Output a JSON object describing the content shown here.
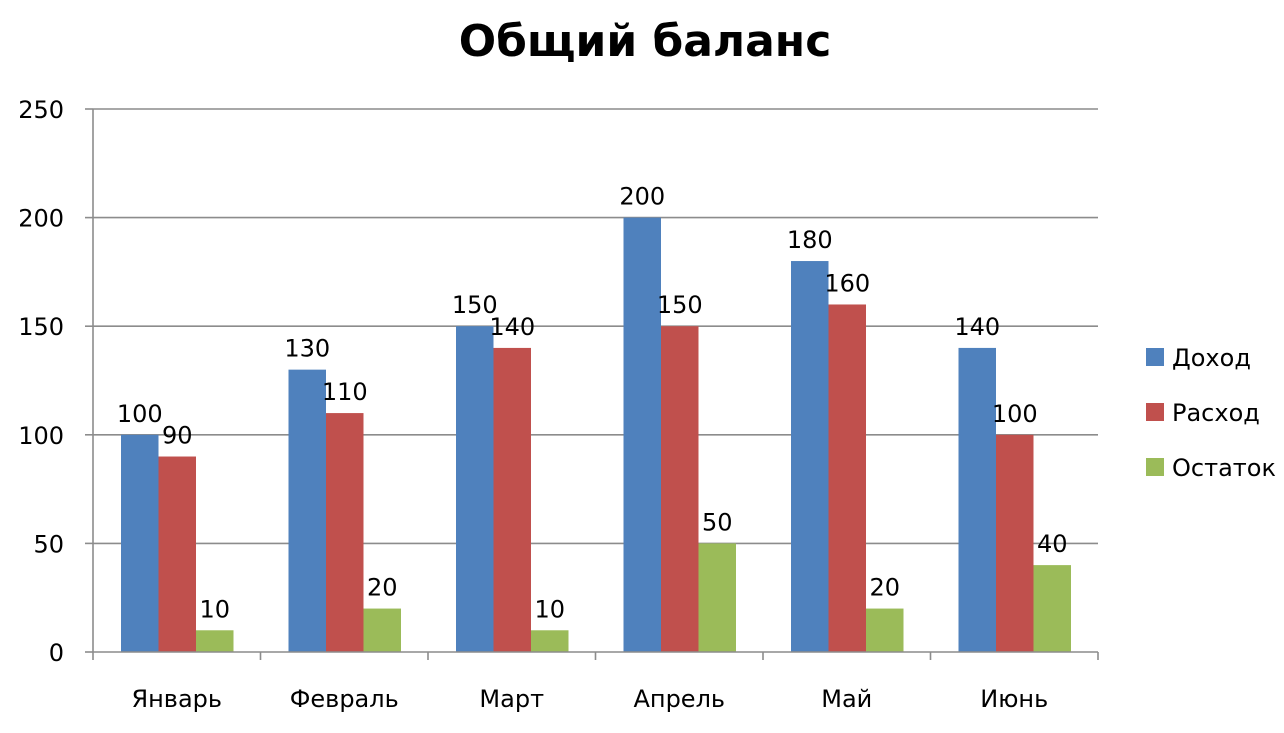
{
  "chart_data": {
    "type": "bar",
    "title": "Общий баланс",
    "categories": [
      "Январь",
      "Февраль",
      "Март",
      "Апрель",
      "Май",
      "Июнь"
    ],
    "series": [
      {
        "name": "Доход",
        "color": "#4f81bd",
        "values": [
          100,
          130,
          150,
          200,
          180,
          140
        ]
      },
      {
        "name": "Расход",
        "color": "#c0504d",
        "values": [
          90,
          110,
          140,
          150,
          160,
          100
        ]
      },
      {
        "name": "Остаток",
        "color": "#9bbb59",
        "values": [
          10,
          20,
          10,
          50,
          20,
          40
        ]
      }
    ],
    "ylim": [
      0,
      250
    ],
    "yticks": [
      0,
      50,
      100,
      150,
      200,
      250
    ],
    "grid": true,
    "legend": "right",
    "data_labels": true
  }
}
